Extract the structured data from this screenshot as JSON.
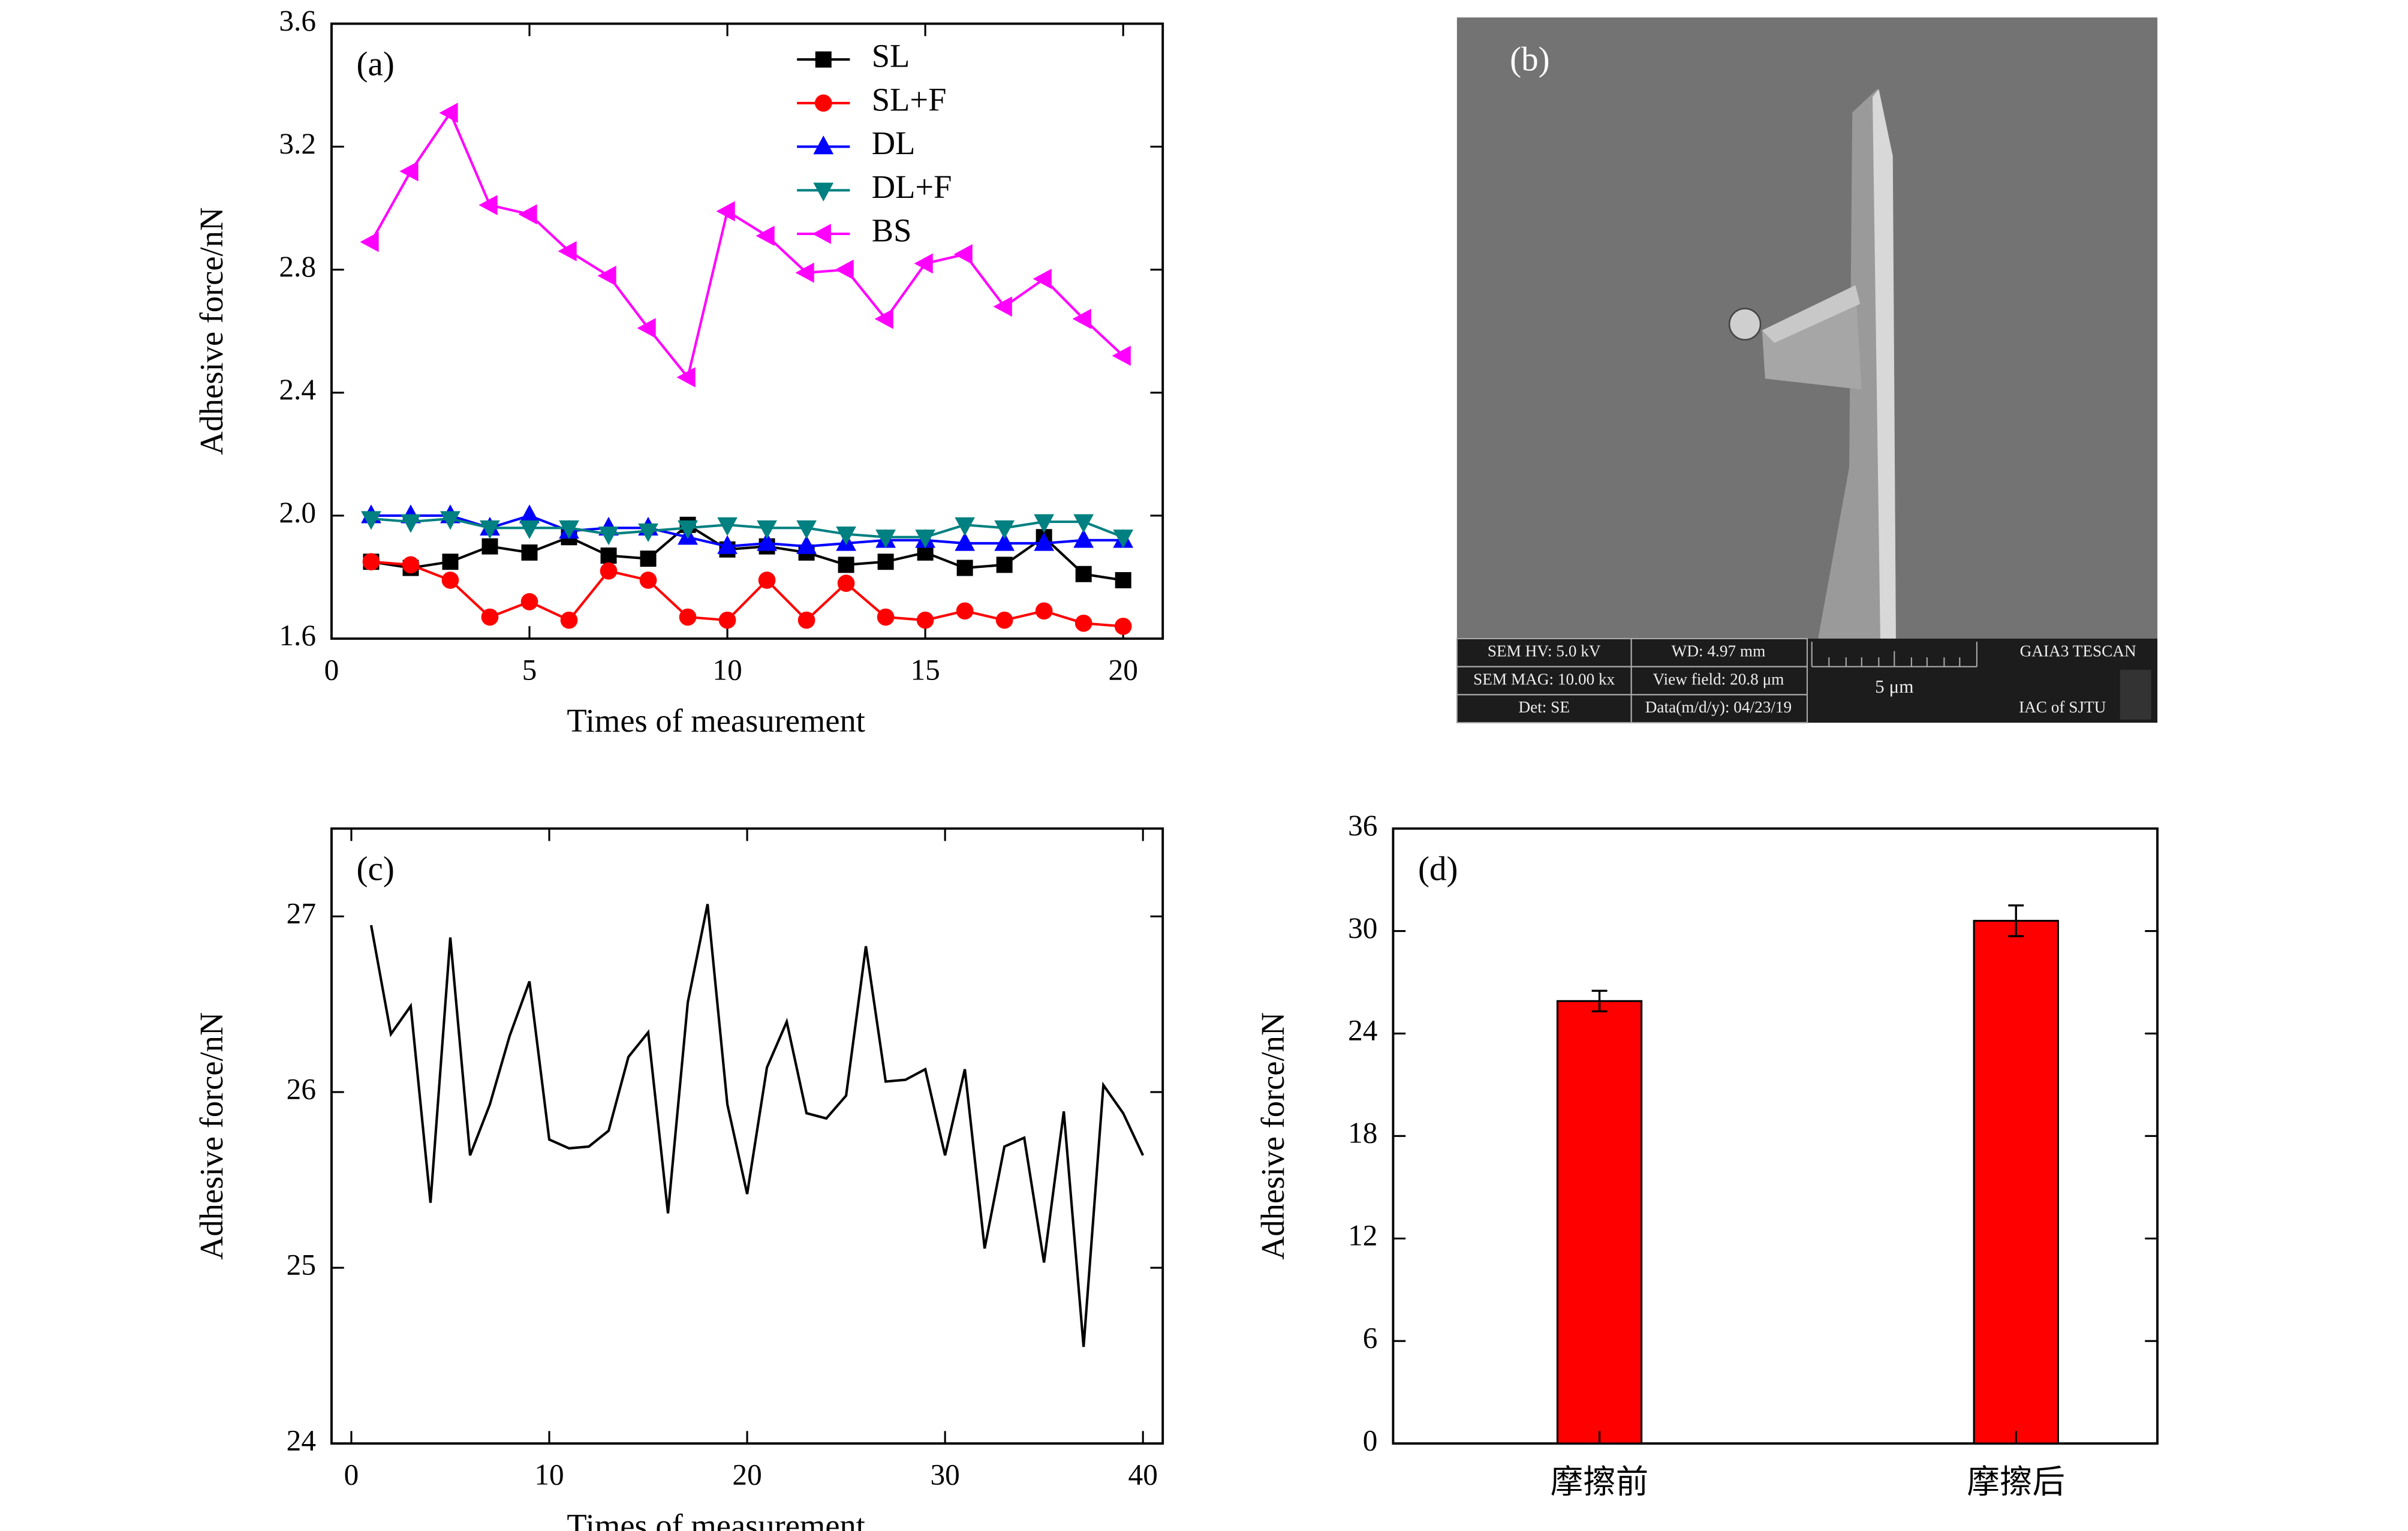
{
  "chart_data": [
    {
      "type": "line",
      "label": "(a)",
      "xlabel": "Times of measurement",
      "ylabel": "Adhesive force/nN",
      "x": [
        1,
        2,
        3,
        4,
        5,
        6,
        7,
        8,
        9,
        10,
        11,
        12,
        13,
        14,
        15,
        16,
        17,
        18,
        19,
        20
      ],
      "series": [
        {
          "name": "SL",
          "color": "#000000",
          "marker": "square",
          "values": [
            1.85,
            1.83,
            1.85,
            1.9,
            1.88,
            1.93,
            1.87,
            1.86,
            1.97,
            1.89,
            1.9,
            1.88,
            1.84,
            1.85,
            1.88,
            1.83,
            1.84,
            1.93,
            1.81,
            1.79
          ]
        },
        {
          "name": "SL+F",
          "color": "#ff0000",
          "marker": "circle",
          "values": [
            1.85,
            1.84,
            1.79,
            1.67,
            1.72,
            1.66,
            1.82,
            1.79,
            1.67,
            1.66,
            1.79,
            1.66,
            1.78,
            1.67,
            1.66,
            1.69,
            1.66,
            1.69,
            1.65,
            1.64
          ]
        },
        {
          "name": "DL",
          "color": "#0000ff",
          "marker": "triangle-up",
          "values": [
            2.0,
            2.0,
            2.0,
            1.96,
            2.0,
            1.95,
            1.96,
            1.96,
            1.93,
            1.9,
            1.91,
            1.9,
            1.91,
            1.92,
            1.92,
            1.91,
            1.91,
            1.91,
            1.92,
            1.92
          ]
        },
        {
          "name": "DL+F",
          "color": "#008080",
          "marker": "triangle-down",
          "values": [
            1.99,
            1.98,
            1.99,
            1.96,
            1.96,
            1.96,
            1.94,
            1.95,
            1.96,
            1.97,
            1.96,
            1.96,
            1.94,
            1.93,
            1.93,
            1.97,
            1.96,
            1.98,
            1.98,
            1.93
          ]
        },
        {
          "name": "BS",
          "color": "#ff00ff",
          "marker": "triangle-left",
          "values": [
            2.89,
            3.12,
            3.31,
            3.01,
            2.98,
            2.86,
            2.78,
            2.61,
            2.45,
            2.99,
            2.91,
            2.79,
            2.8,
            2.64,
            2.82,
            2.85,
            2.68,
            2.77,
            2.64,
            2.52
          ]
        }
      ],
      "xlim": [
        0,
        21
      ],
      "xticks": [
        0,
        5,
        10,
        15,
        20
      ],
      "ylim": [
        1.6,
        3.6
      ],
      "yticks": [
        1.6,
        {
          "value": 2.0,
          "label": "2.0"
        },
        2.4,
        2.8,
        3.2,
        3.6
      ],
      "legend": "top-center"
    },
    {
      "type": "line",
      "label": "(c)",
      "xlabel": "Times of measurement",
      "ylabel": "Adhesive force/nN",
      "x": [
        1,
        2,
        3,
        4,
        5,
        6,
        7,
        8,
        9,
        10,
        11,
        12,
        13,
        14,
        15,
        16,
        17,
        18,
        19,
        20,
        21,
        22,
        23,
        24,
        25,
        26,
        27,
        28,
        29,
        30,
        31,
        32,
        33,
        34,
        35,
        36,
        37,
        38,
        39,
        40
      ],
      "values": [
        26.95,
        26.33,
        26.49,
        25.37,
        26.88,
        25.64,
        25.93,
        26.32,
        26.63,
        25.73,
        25.68,
        25.69,
        25.78,
        26.2,
        26.34,
        25.31,
        26.51,
        27.07,
        25.93,
        25.42,
        26.14,
        26.4,
        25.88,
        25.85,
        25.98,
        26.83,
        26.06,
        26.07,
        26.13,
        25.64,
        26.13,
        25.11,
        25.69,
        25.74,
        25.03,
        25.89,
        24.55,
        26.04,
        25.88,
        25.64
      ],
      "color": "#000000",
      "xlim": [
        -1,
        41
      ],
      "xticks": [
        0,
        10,
        20,
        30,
        40
      ],
      "ylim": [
        24,
        27.5
      ],
      "yticks": [
        24,
        25,
        26,
        27
      ]
    },
    {
      "type": "bar",
      "label": "(d)",
      "ylabel": "Adhesive force/nN",
      "categories": [
        "摩擦前",
        "摩擦后"
      ],
      "values": [
        25.9,
        30.6
      ],
      "errors": [
        0.6,
        0.9
      ],
      "color": "#ff0000",
      "ylim": [
        0,
        36
      ],
      "yticks": [
        0,
        6,
        12,
        18,
        24,
        30,
        36
      ]
    }
  ],
  "sem_image": {
    "label": "(b)",
    "info": [
      "SEM HV: 5.0 kV",
      "WD: 4.97 mm",
      "GAIA3 TESCAN",
      "SEM MAG: 10.00 kx",
      "View field: 20.8 μm",
      "5 μm",
      "Det: SE",
      "Data(m/d/y): 04/23/19",
      "IAC of SJTU"
    ]
  }
}
